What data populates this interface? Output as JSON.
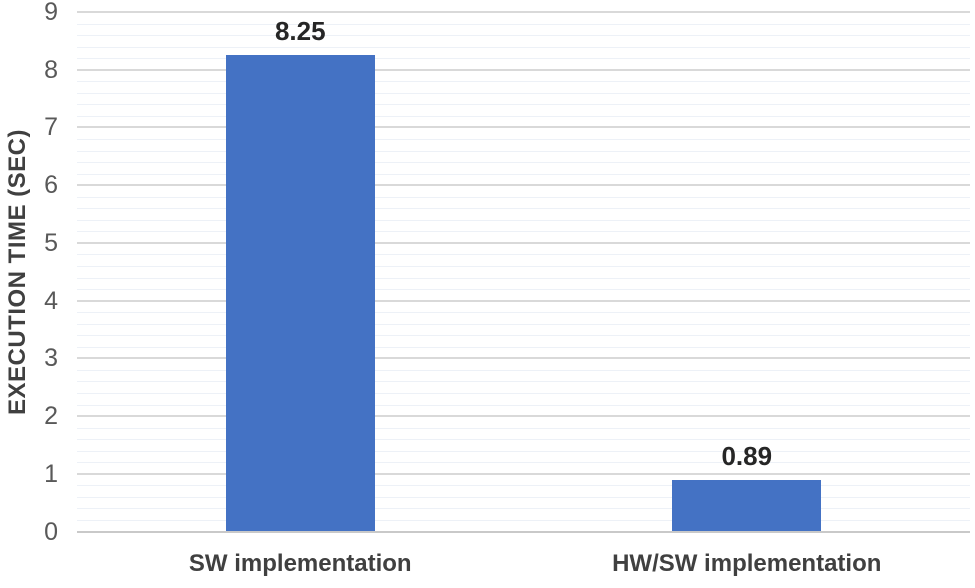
{
  "chart_data": {
    "type": "bar",
    "categories": [
      "SW implementation",
      "HW/SW implementation"
    ],
    "values": [
      8.25,
      0.89
    ],
    "data_labels": [
      "8.25",
      "0.89"
    ],
    "title": "",
    "xlabel": "",
    "ylabel": "EXECUTION TIME (SEC)",
    "ylim": [
      0,
      9
    ],
    "y_major_step": 1,
    "y_minor_step": 0.2,
    "y_tick_labels": [
      "0",
      "1",
      "2",
      "3",
      "4",
      "5",
      "6",
      "7",
      "8",
      "9"
    ],
    "grid": "horizontal major and minor gridlines",
    "legend": "none",
    "colors": {
      "bar_fill": "#4472C4",
      "major_gridline": "#D9D9D9",
      "minor_gridline": "#EDF1F7",
      "axis_line": "#C9C9C9",
      "tick_label": "#595959",
      "category_label": "#404040",
      "data_label": "#262626",
      "axis_title": "#404040",
      "background": "#FFFFFF"
    }
  }
}
